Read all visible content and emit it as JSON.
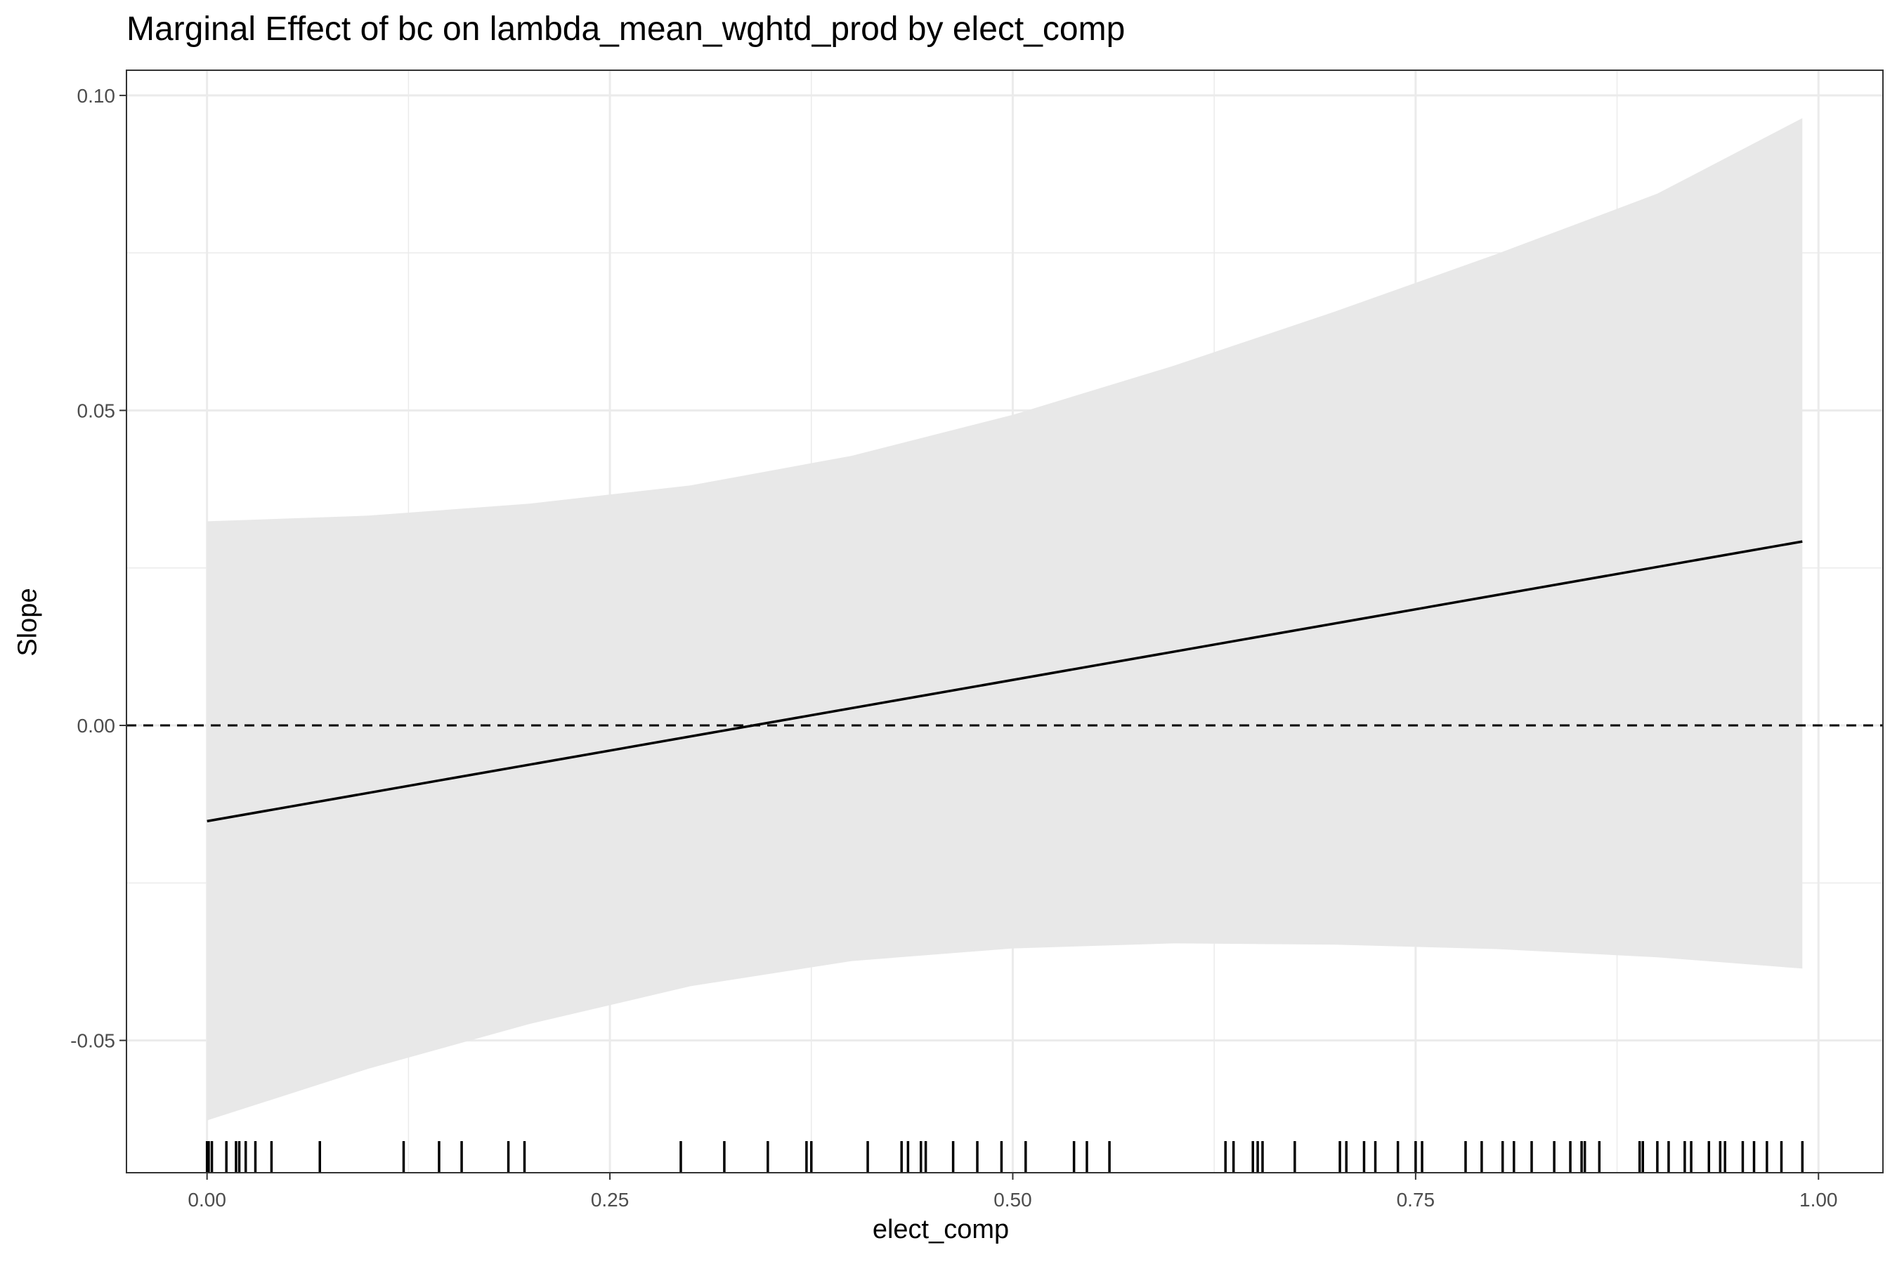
{
  "chart_data": {
    "type": "line",
    "title": "Marginal Effect of bc on lambda_mean_wghtd_prod by elect_comp",
    "xlabel": "elect_comp",
    "ylabel": "Slope",
    "xlim": [
      -0.05,
      1.04
    ],
    "ylim": [
      -0.071,
      0.104
    ],
    "x_ticks": [
      0,
      0.25,
      0.5,
      0.75,
      1
    ],
    "x_tick_labels": [
      "0.00",
      "0.25",
      "0.50",
      "0.75",
      "1.00"
    ],
    "y_ticks": [
      -0.05,
      0,
      0.05,
      0.1
    ],
    "y_tick_labels": [
      "-0.05",
      "0.00",
      "0.05",
      "0.10"
    ],
    "grid": true,
    "reference_line": {
      "y": 0,
      "style": "dashed"
    },
    "series": [
      {
        "x": [
          0,
          0.99
        ],
        "values": [
          -0.0152,
          0.0292
        ]
      }
    ],
    "confidence_band": {
      "x": [
        0,
        0.1,
        0.2,
        0.3,
        0.4,
        0.5,
        0.6,
        0.7,
        0.8,
        0.9,
        0.99
      ],
      "upper": [
        0.0324,
        0.0333,
        0.0352,
        0.0381,
        0.0428,
        0.0493,
        0.0571,
        0.0657,
        0.0748,
        0.0844,
        0.0964
      ],
      "lower": [
        -0.0627,
        -0.0545,
        -0.0474,
        -0.0414,
        -0.0374,
        -0.0354,
        -0.0346,
        -0.0348,
        -0.0355,
        -0.0368,
        -0.0386
      ]
    },
    "rug": [
      0,
      0.001,
      0.003,
      0.012,
      0.018,
      0.02,
      0.024,
      0.03,
      0.04,
      0.07,
      0.122,
      0.144,
      0.158,
      0.187,
      0.197,
      0.294,
      0.321,
      0.348,
      0.372,
      0.375,
      0.41,
      0.431,
      0.435,
      0.443,
      0.446,
      0.463,
      0.478,
      0.493,
      0.508,
      0.538,
      0.546,
      0.56,
      0.632,
      0.637,
      0.649,
      0.652,
      0.655,
      0.675,
      0.703,
      0.707,
      0.718,
      0.725,
      0.739,
      0.75,
      0.754,
      0.781,
      0.791,
      0.804,
      0.811,
      0.822,
      0.836,
      0.846,
      0.853,
      0.855,
      0.864,
      0.889,
      0.891,
      0.9,
      0.907,
      0.917,
      0.921,
      0.932,
      0.939,
      0.942,
      0.953,
      0.96,
      0.968,
      0.977,
      0.99
    ]
  }
}
